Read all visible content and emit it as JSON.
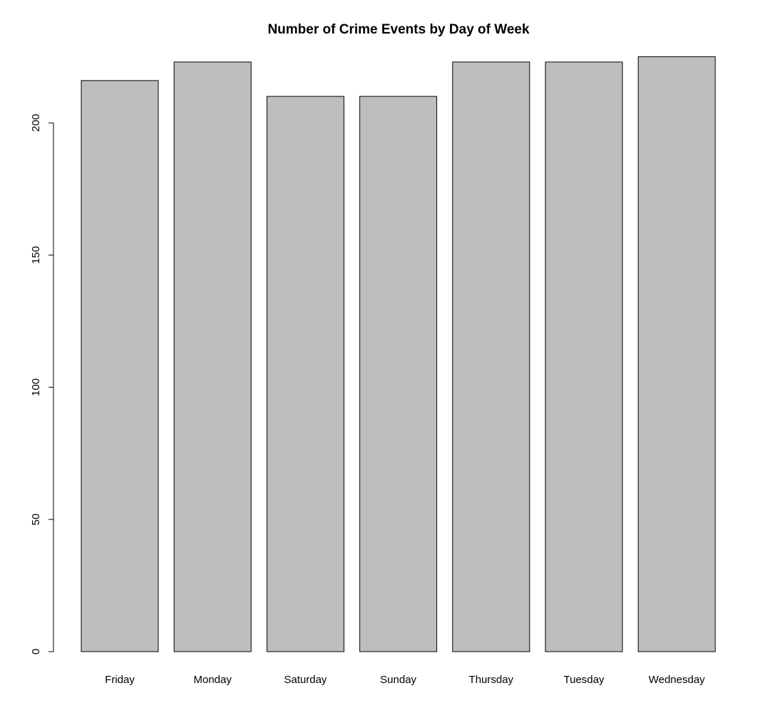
{
  "chart_data": {
    "type": "bar",
    "title": "Number of Crime Events by Day of Week",
    "xlabel": "",
    "ylabel": "",
    "categories": [
      "Friday",
      "Monday",
      "Saturday",
      "Sunday",
      "Thursday",
      "Tuesday",
      "Wednesday"
    ],
    "values": [
      216,
      223,
      210,
      210,
      223,
      223,
      225
    ],
    "ylim": [
      0,
      225
    ],
    "yticks": [
      0,
      50,
      100,
      150,
      200
    ],
    "grid": false,
    "bar_color": "#bebebe",
    "bar_border_color": "#000000"
  }
}
